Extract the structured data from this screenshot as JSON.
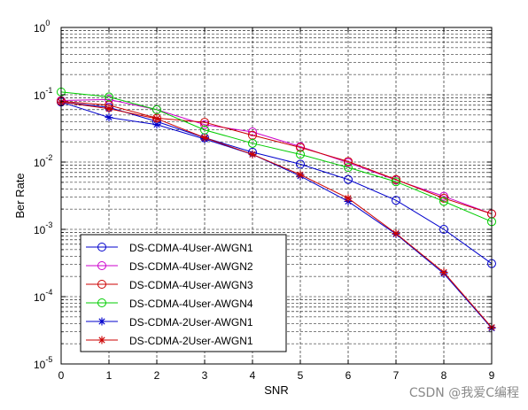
{
  "chart_data": {
    "type": "line",
    "xlabel": "SNR",
    "ylabel": "Ber Rate",
    "xlim": [
      0,
      9
    ],
    "ylim": [
      1e-05,
      1
    ],
    "yscale": "log",
    "grid": true,
    "legend_position": "bottom-left",
    "x": [
      0,
      1,
      2,
      3,
      4,
      5,
      6,
      7,
      8,
      9
    ],
    "x_ticks": [
      "0",
      "1",
      "2",
      "3",
      "4",
      "5",
      "6",
      "7",
      "8",
      "9"
    ],
    "y_ticks": [
      {
        "base": "10",
        "exp": "0",
        "value": 1
      },
      {
        "base": "10",
        "exp": "-1",
        "value": 0.1
      },
      {
        "base": "10",
        "exp": "-2",
        "value": 0.01
      },
      {
        "base": "10",
        "exp": "-3",
        "value": 0.001
      },
      {
        "base": "10",
        "exp": "-4",
        "value": 0.0001
      },
      {
        "base": "10",
        "exp": "-5",
        "value": 1e-05
      }
    ],
    "series": [
      {
        "name": "DS-CDMA-4User-AWGN1",
        "color": "#0000cc",
        "marker": "circle",
        "values": [
          0.078,
          0.065,
          0.04,
          0.023,
          0.014,
          0.0093,
          0.0055,
          0.0027,
          0.001,
          0.00031
        ]
      },
      {
        "name": "DS-CDMA-4User-AWGN2",
        "color": "#cc00cc",
        "marker": "circle",
        "values": [
          0.082,
          0.085,
          0.06,
          0.036,
          0.028,
          0.017,
          0.0098,
          0.0054,
          0.0031,
          0.0017
        ]
      },
      {
        "name": "DS-CDMA-4User-AWGN3",
        "color": "#cc0000",
        "marker": "circle",
        "values": [
          0.08,
          0.07,
          0.045,
          0.039,
          0.025,
          0.0165,
          0.0102,
          0.0055,
          0.0029,
          0.0017
        ]
      },
      {
        "name": "DS-CDMA-4User-AWGN4",
        "color": "#00cc00",
        "marker": "circle",
        "values": [
          0.11,
          0.093,
          0.06,
          0.03,
          0.019,
          0.013,
          0.0083,
          0.0051,
          0.0026,
          0.0013
        ]
      },
      {
        "name": "DS-CDMA-2User-AWGN1",
        "color": "#0000cc",
        "marker": "star",
        "values": [
          0.078,
          0.046,
          0.036,
          0.022,
          0.013,
          0.0062,
          0.0026,
          0.00085,
          0.00022,
          3.4e-05
        ]
      },
      {
        "name": "DS-CDMA-2User-AWGN1",
        "color": "#cc0000",
        "marker": "star",
        "values": [
          0.078,
          0.062,
          0.044,
          0.023,
          0.013,
          0.0065,
          0.0029,
          0.00087,
          0.00023,
          3.5e-05
        ]
      }
    ]
  },
  "watermark": {
    "text": "CSDN @我爱C编程"
  }
}
